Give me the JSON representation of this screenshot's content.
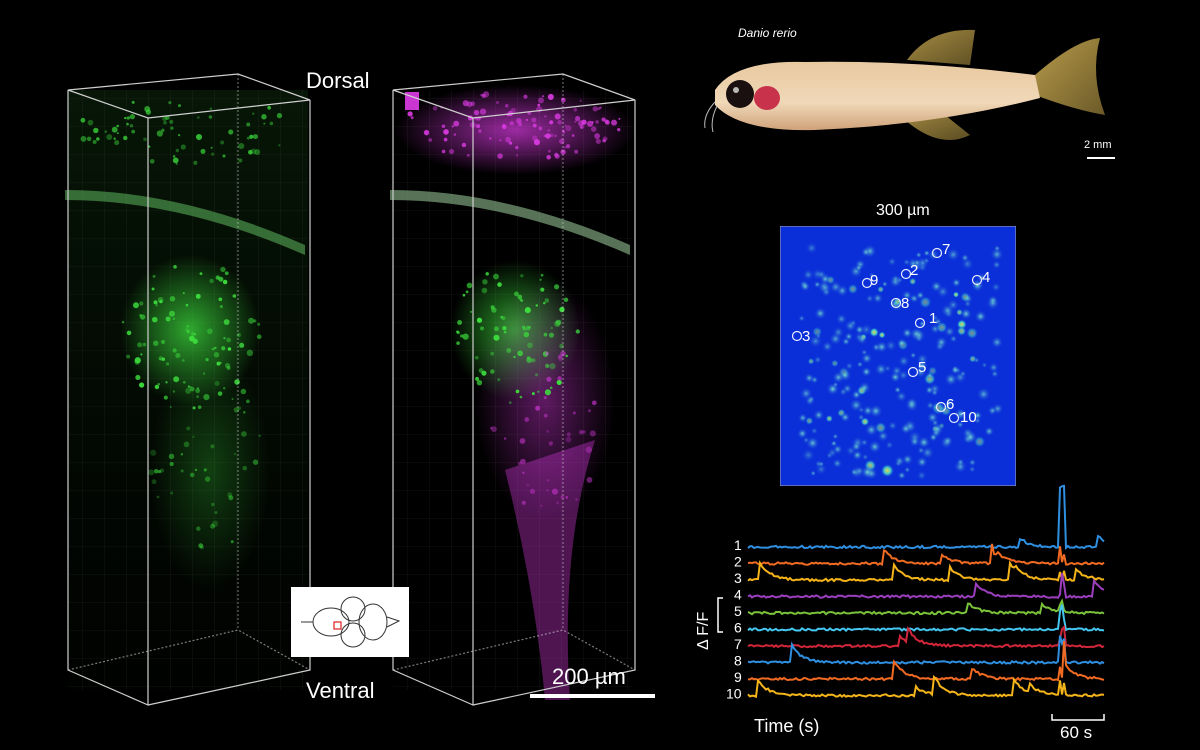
{
  "labels": {
    "dorsal": "Dorsal",
    "ventral": "Ventral",
    "species": "Danio rerio",
    "fish_scale": "2 mm",
    "volume_scale": "200 µm",
    "heatmap_title": "300 µm",
    "dff": "Δ F/F",
    "time_axis": "Time (s)",
    "time_scale": "60 s"
  },
  "heatmap": {
    "cells": [
      {
        "label": "1"
      },
      {
        "label": "2"
      },
      {
        "label": "3"
      },
      {
        "label": "4"
      },
      {
        "label": "5"
      },
      {
        "label": "6"
      },
      {
        "label": "7"
      },
      {
        "label": "8"
      },
      {
        "label": "9"
      },
      {
        "label": "10"
      }
    ]
  },
  "traces": {
    "series": [
      {
        "label": "1",
        "color": "#2f8fe0"
      },
      {
        "label": "2",
        "color": "#f26b22"
      },
      {
        "label": "3",
        "color": "#f4b41a"
      },
      {
        "label": "4",
        "color": "#9c3fbf"
      },
      {
        "label": "5",
        "color": "#79c23a"
      },
      {
        "label": "6",
        "color": "#45c6f0"
      },
      {
        "label": "7",
        "color": "#d2263a"
      },
      {
        "label": "8",
        "color": "#2f8fe0"
      },
      {
        "label": "9",
        "color": "#f26b22"
      },
      {
        "label": "10",
        "color": "#f4b41a"
      }
    ]
  },
  "colors": {
    "green_channel": "#3ddc3d",
    "magenta_channel": "#e03ce8",
    "heatmap_bg": "#0a2fd8"
  }
}
